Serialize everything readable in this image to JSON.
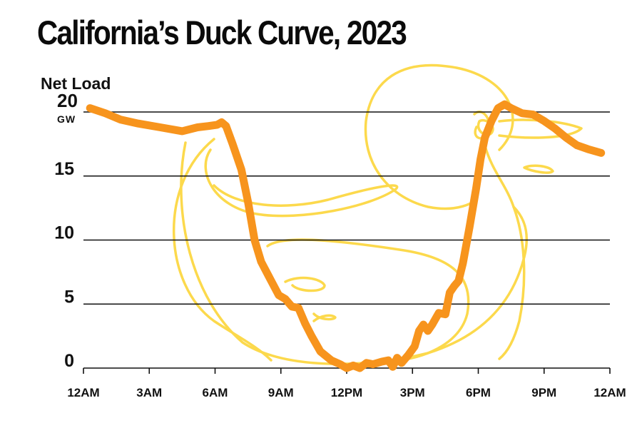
{
  "chart_data": {
    "type": "line",
    "title": "California’s Duck Curve, 2023",
    "ylabel": "Net Load",
    "yunit_top_value": "20",
    "yunit": "GW",
    "ylim": [
      0,
      20
    ],
    "yticks": [
      0,
      5,
      10,
      15
    ],
    "xlim": [
      0,
      24
    ],
    "xtick_labels": [
      "12AM",
      "3AM",
      "6AM",
      "9AM",
      "12PM",
      "3PM",
      "6PM",
      "9PM",
      "12AM"
    ],
    "grid": true,
    "legend": "none",
    "series_color": "#f7941d",
    "decoration_color": "#fcd94c",
    "x": [
      0.3,
      1.0,
      1.7,
      2.5,
      3.5,
      4.5,
      5.2,
      5.7,
      6.1,
      6.3,
      6.5,
      6.8,
      7.2,
      7.5,
      7.8,
      8.1,
      8.5,
      8.9,
      9.2,
      9.5,
      9.8,
      10.1,
      10.4,
      10.8,
      11.3,
      11.7,
      12.0,
      12.3,
      12.6,
      12.9,
      13.2,
      13.6,
      13.9,
      14.1,
      14.3,
      14.5,
      14.8,
      15.1,
      15.3,
      15.5,
      15.7,
      15.9,
      16.2,
      16.5,
      16.7,
      16.9,
      17.1,
      17.3,
      17.6,
      17.9,
      18.1,
      18.3,
      18.6,
      18.9,
      19.2,
      19.5,
      20.0,
      20.5,
      21.0,
      21.5,
      22.0,
      22.5,
      23.0,
      23.6
    ],
    "y": [
      20.3,
      19.9,
      19.4,
      19.1,
      18.8,
      18.5,
      18.8,
      18.9,
      19.0,
      19.2,
      18.9,
      17.5,
      15.5,
      13.0,
      10.0,
      8.3,
      7.0,
      5.7,
      5.4,
      4.8,
      4.7,
      3.5,
      2.5,
      1.3,
      0.6,
      0.3,
      0.0,
      0.2,
      0.0,
      0.4,
      0.3,
      0.5,
      0.6,
      0.1,
      0.8,
      0.4,
      1.0,
      1.7,
      2.9,
      3.4,
      2.9,
      3.4,
      4.3,
      4.2,
      5.9,
      6.4,
      6.8,
      8.2,
      11.0,
      14.0,
      16.3,
      18.0,
      19.3,
      20.3,
      20.6,
      20.3,
      19.9,
      19.8,
      19.3,
      18.7,
      18.0,
      17.4,
      17.1,
      16.8
    ]
  }
}
